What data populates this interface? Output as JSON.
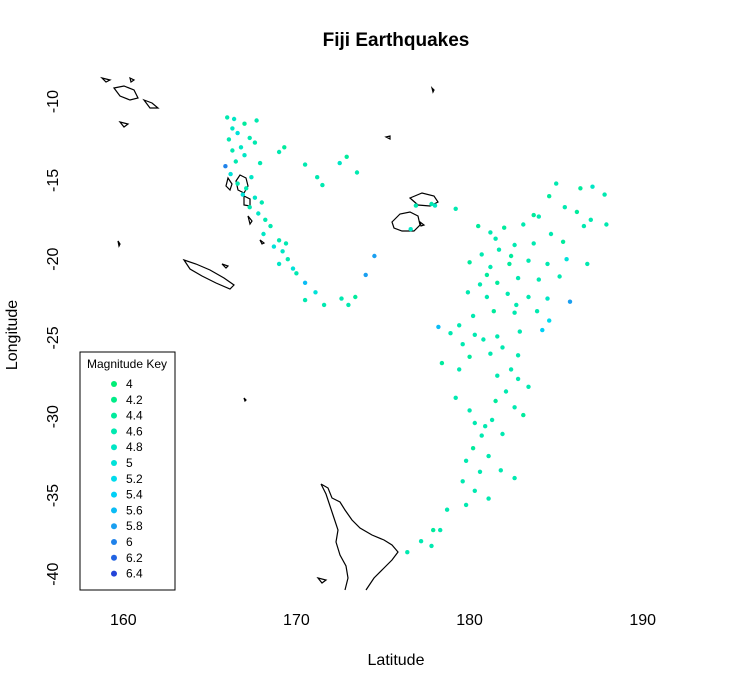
{
  "chart_data": {
    "type": "scatter",
    "title": "Fiji Earthquakes",
    "xlabel": "Latitude",
    "ylabel": "Longitude",
    "xlim": [
      157.5,
      194
    ],
    "ylim": [
      -41,
      -8.5
    ],
    "x_ticks": [
      160,
      170,
      180,
      190
    ],
    "y_ticks": [
      -10,
      -15,
      -20,
      -25,
      -30,
      -35,
      -40
    ],
    "grid": false,
    "legend": {
      "title": "Magnitude Key",
      "placement": "bottom-left",
      "entries": [
        {
          "label": "4",
          "color": "#00ee76"
        },
        {
          "label": "4.2",
          "color": "#00ec88"
        },
        {
          "label": "4.4",
          "color": "#00eb9c"
        },
        {
          "label": "4.6",
          "color": "#00e9b0"
        },
        {
          "label": "4.8",
          "color": "#00e6c5"
        },
        {
          "label": "5",
          "color": "#00e2d9"
        },
        {
          "label": "5.2",
          "color": "#00dced"
        },
        {
          "label": "5.4",
          "color": "#00d0f7"
        },
        {
          "label": "5.6",
          "color": "#0bbcf5"
        },
        {
          "label": "5.8",
          "color": "#1a9ff0"
        },
        {
          "label": "6",
          "color": "#1f82ea"
        },
        {
          "label": "6.2",
          "color": "#2163e2"
        },
        {
          "label": "6.4",
          "color": "#2444d8"
        }
      ]
    },
    "points": [
      [
        166.0,
        -11.0,
        4.6
      ],
      [
        166.4,
        -11.1,
        4.8
      ],
      [
        167.0,
        -11.4,
        4.4
      ],
      [
        167.7,
        -11.2,
        4.6
      ],
      [
        166.3,
        -11.7,
        4.8
      ],
      [
        166.6,
        -12.0,
        5.0
      ],
      [
        167.3,
        -12.3,
        4.6
      ],
      [
        166.1,
        -12.4,
        4.6
      ],
      [
        167.6,
        -12.6,
        4.6
      ],
      [
        166.8,
        -12.9,
        4.8
      ],
      [
        166.3,
        -13.1,
        4.6
      ],
      [
        167.0,
        -13.4,
        4.8
      ],
      [
        166.5,
        -13.8,
        4.6
      ],
      [
        167.9,
        -13.9,
        4.6
      ],
      [
        165.9,
        -14.1,
        6.0
      ],
      [
        166.2,
        -14.6,
        5.0
      ],
      [
        167.4,
        -14.8,
        4.8
      ],
      [
        166.6,
        -15.2,
        4.6
      ],
      [
        167.1,
        -15.5,
        4.6
      ],
      [
        166.9,
        -15.9,
        5.0
      ],
      [
        167.6,
        -16.1,
        4.8
      ],
      [
        168.0,
        -16.4,
        4.6
      ],
      [
        167.3,
        -16.7,
        4.6
      ],
      [
        167.8,
        -17.1,
        4.8
      ],
      [
        168.2,
        -17.5,
        4.6
      ],
      [
        168.5,
        -17.9,
        4.6
      ],
      [
        168.1,
        -18.4,
        4.8
      ],
      [
        169.0,
        -18.8,
        4.6
      ],
      [
        168.7,
        -19.2,
        5.0
      ],
      [
        169.4,
        -19.0,
        4.6
      ],
      [
        169.2,
        -19.5,
        4.8
      ],
      [
        169.5,
        -20.0,
        4.6
      ],
      [
        169.0,
        -20.3,
        4.8
      ],
      [
        169.8,
        -20.6,
        5.0
      ],
      [
        170.0,
        -20.9,
        4.6
      ],
      [
        170.5,
        -21.5,
        5.6
      ],
      [
        171.1,
        -22.1,
        5.0
      ],
      [
        170.5,
        -22.6,
        4.6
      ],
      [
        171.6,
        -22.9,
        4.6
      ],
      [
        172.6,
        -22.5,
        4.6
      ],
      [
        173.4,
        -22.4,
        4.4
      ],
      [
        173.0,
        -22.9,
        4.6
      ],
      [
        174.0,
        -21.0,
        5.8
      ],
      [
        174.5,
        -19.8,
        5.8
      ],
      [
        169.0,
        -13.2,
        4.6
      ],
      [
        169.3,
        -12.9,
        4.4
      ],
      [
        170.5,
        -14.0,
        4.6
      ],
      [
        171.2,
        -14.8,
        4.6
      ],
      [
        172.5,
        -13.9,
        4.8
      ],
      [
        172.9,
        -13.5,
        4.4
      ],
      [
        173.5,
        -14.5,
        4.6
      ],
      [
        171.5,
        -15.3,
        4.6
      ],
      [
        185.0,
        -15.2,
        4.6
      ],
      [
        186.4,
        -15.5,
        4.4
      ],
      [
        187.1,
        -15.4,
        4.8
      ],
      [
        187.8,
        -15.9,
        4.6
      ],
      [
        184.6,
        -16.0,
        4.4
      ],
      [
        185.5,
        -16.7,
        4.6
      ],
      [
        186.2,
        -17.0,
        4.4
      ],
      [
        187.0,
        -17.5,
        4.6
      ],
      [
        184.0,
        -17.3,
        4.6
      ],
      [
        183.1,
        -17.8,
        4.6
      ],
      [
        182.0,
        -18.0,
        4.4
      ],
      [
        181.2,
        -18.3,
        4.6
      ],
      [
        180.5,
        -17.9,
        4.4
      ],
      [
        179.2,
        -16.8,
        4.6
      ],
      [
        178.0,
        -16.6,
        4.8
      ],
      [
        176.9,
        -16.6,
        4.6
      ],
      [
        184.7,
        -18.4,
        4.6
      ],
      [
        185.4,
        -18.9,
        4.4
      ],
      [
        183.7,
        -19.0,
        4.6
      ],
      [
        182.6,
        -19.1,
        4.6
      ],
      [
        181.7,
        -19.4,
        4.6
      ],
      [
        180.7,
        -19.7,
        4.6
      ],
      [
        180.0,
        -20.2,
        4.4
      ],
      [
        181.2,
        -20.5,
        4.6
      ],
      [
        182.3,
        -20.3,
        4.4
      ],
      [
        183.4,
        -20.1,
        4.6
      ],
      [
        184.5,
        -20.3,
        4.6
      ],
      [
        185.6,
        -20.0,
        5.0
      ],
      [
        186.8,
        -20.3,
        4.6
      ],
      [
        185.2,
        -21.1,
        4.6
      ],
      [
        184.0,
        -21.3,
        4.6
      ],
      [
        182.8,
        -21.2,
        4.6
      ],
      [
        181.6,
        -21.5,
        4.4
      ],
      [
        180.6,
        -21.6,
        4.6
      ],
      [
        179.9,
        -22.1,
        4.6
      ],
      [
        181.0,
        -22.4,
        4.6
      ],
      [
        182.2,
        -22.2,
        4.6
      ],
      [
        183.4,
        -22.4,
        4.6
      ],
      [
        184.5,
        -22.5,
        4.8
      ],
      [
        185.8,
        -22.7,
        5.8
      ],
      [
        183.9,
        -23.3,
        4.6
      ],
      [
        182.6,
        -23.4,
        4.6
      ],
      [
        181.4,
        -23.3,
        4.4
      ],
      [
        180.2,
        -23.6,
        4.6
      ],
      [
        179.4,
        -24.2,
        4.6
      ],
      [
        178.9,
        -24.7,
        4.6
      ],
      [
        180.3,
        -24.8,
        4.6
      ],
      [
        181.6,
        -24.9,
        4.6
      ],
      [
        182.9,
        -24.6,
        4.6
      ],
      [
        184.2,
        -24.5,
        5.4
      ],
      [
        184.6,
        -23.9,
        5.2
      ],
      [
        179.6,
        -25.4,
        4.6
      ],
      [
        180.0,
        -26.2,
        4.4
      ],
      [
        181.2,
        -26.0,
        4.6
      ],
      [
        182.8,
        -26.1,
        4.6
      ],
      [
        178.4,
        -26.6,
        4.4
      ],
      [
        179.4,
        -27.0,
        4.6
      ],
      [
        181.6,
        -27.4,
        4.6
      ],
      [
        182.8,
        -27.6,
        4.6
      ],
      [
        183.4,
        -28.1,
        4.6
      ],
      [
        182.1,
        -28.4,
        4.6
      ],
      [
        181.5,
        -29.0,
        4.4
      ],
      [
        182.6,
        -29.4,
        4.6
      ],
      [
        183.1,
        -29.9,
        4.4
      ],
      [
        181.3,
        -30.2,
        4.6
      ],
      [
        180.9,
        -30.6,
        4.6
      ],
      [
        180.3,
        -30.4,
        4.6
      ],
      [
        181.9,
        -31.1,
        4.6
      ],
      [
        180.7,
        -31.2,
        4.6
      ],
      [
        180.2,
        -32.0,
        4.4
      ],
      [
        181.1,
        -32.5,
        4.6
      ],
      [
        179.8,
        -32.8,
        4.6
      ],
      [
        180.6,
        -33.5,
        4.6
      ],
      [
        181.8,
        -33.4,
        4.6
      ],
      [
        182.6,
        -33.9,
        4.6
      ],
      [
        179.6,
        -34.1,
        4.6
      ],
      [
        180.3,
        -34.7,
        4.6
      ],
      [
        181.1,
        -35.2,
        4.6
      ],
      [
        179.8,
        -35.6,
        4.6
      ],
      [
        178.7,
        -35.9,
        4.6
      ],
      [
        178.3,
        -37.2,
        4.6
      ],
      [
        177.2,
        -37.9,
        4.6
      ],
      [
        177.8,
        -38.2,
        4.6
      ],
      [
        176.4,
        -38.6,
        4.6
      ],
      [
        177.9,
        -37.2,
        4.4
      ],
      [
        181.5,
        -18.7,
        4.6
      ],
      [
        182.4,
        -19.8,
        4.4
      ],
      [
        181.0,
        -21.0,
        4.4
      ],
      [
        182.7,
        -22.9,
        4.6
      ],
      [
        180.8,
        -25.1,
        4.6
      ],
      [
        181.9,
        -25.6,
        4.6
      ],
      [
        182.4,
        -27.0,
        4.6
      ],
      [
        179.2,
        -28.8,
        4.6
      ],
      [
        180.0,
        -29.6,
        4.6
      ],
      [
        177.8,
        -16.5,
        4.6
      ],
      [
        176.6,
        -18.1,
        4.8
      ],
      [
        178.2,
        -24.3,
        5.6
      ],
      [
        183.7,
        -17.2,
        4.4
      ],
      [
        186.6,
        -17.9,
        4.6
      ],
      [
        187.9,
        -17.8,
        4.6
      ]
    ]
  }
}
